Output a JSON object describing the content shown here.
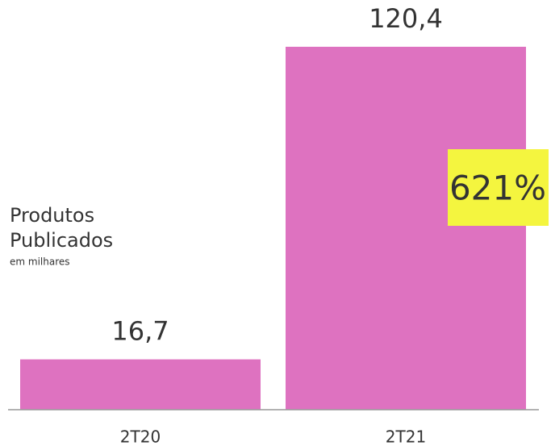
{
  "chart_data": {
    "type": "bar",
    "categories": [
      "2T20",
      "2T21"
    ],
    "values": [
      16.7,
      120.4
    ],
    "value_labels": [
      "16,7",
      "120,4"
    ],
    "color": "#de72c0",
    "label_lines": [
      "Produtos",
      "Publicados"
    ],
    "sublabel": "em milhares",
    "annotation": "621%"
  }
}
